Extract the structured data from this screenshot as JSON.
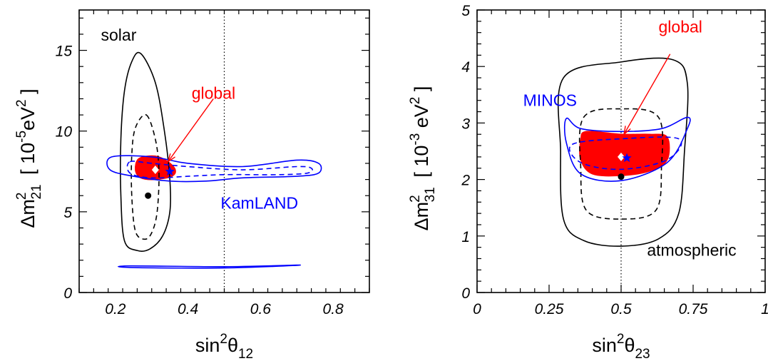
{
  "chart_data": [
    {
      "type": "contour",
      "xlabel": {
        "main": "sin",
        "sup": "2",
        "sym": "θ",
        "sub": "12"
      },
      "ylabel": {
        "main": "Δm",
        "sup": "2",
        "sub": "21",
        "rest": "[ 10",
        "exp": "-5",
        "unit": "eV",
        "unitsup": "2",
        "close": "]"
      },
      "xlim": [
        0.1,
        0.9
      ],
      "ylim": [
        0,
        17.5
      ],
      "xticks": [
        {
          "v": 0.2,
          "label": "0.2"
        },
        {
          "v": 0.4,
          "label": "0.4"
        },
        {
          "v": 0.6,
          "label": "0.6"
        },
        {
          "v": 0.8,
          "label": "0.8"
        }
      ],
      "yticks": [
        {
          "v": 0,
          "label": "0"
        },
        {
          "v": 5,
          "label": "5"
        },
        {
          "v": 10,
          "label": "10"
        },
        {
          "v": 15,
          "label": "15"
        }
      ],
      "vline": {
        "x": 0.5
      },
      "annotations": [
        {
          "text": "solar",
          "x": 0.16,
          "y": 15.6,
          "color": "#000000"
        },
        {
          "text": "global",
          "x": 0.41,
          "y": 12.0,
          "color": "#ff0000"
        },
        {
          "text": "KamLAND",
          "x": 0.49,
          "y": 5.2,
          "color": "#0000ff"
        }
      ],
      "arrow": {
        "from": [
          0.47,
          12.0
        ],
        "to": [
          0.345,
          8.1
        ],
        "color": "#ff0000"
      },
      "regions": [
        {
          "name": "solar",
          "color": "#000000",
          "style": "solid",
          "fill": false,
          "points": [
            [
              0.27,
              14.8
            ],
            [
              0.31,
              13.0
            ],
            [
              0.335,
              10.0
            ],
            [
              0.35,
              7.0
            ],
            [
              0.35,
              5.0
            ],
            [
              0.33,
              3.5
            ],
            [
              0.295,
              2.7
            ],
            [
              0.26,
              2.6
            ],
            [
              0.225,
              3.2
            ],
            [
              0.215,
              6.0
            ],
            [
              0.215,
              9.5
            ],
            [
              0.225,
              12.5
            ],
            [
              0.245,
              14.3
            ]
          ]
        },
        {
          "name": "solar",
          "color": "#000000",
          "style": "dashed",
          "fill": false,
          "points": [
            [
              0.285,
              11.0
            ],
            [
              0.31,
              9.5
            ],
            [
              0.32,
              7.5
            ],
            [
              0.315,
              5.0
            ],
            [
              0.3,
              3.7
            ],
            [
              0.28,
              3.3
            ],
            [
              0.255,
              3.8
            ],
            [
              0.245,
              6.0
            ],
            [
              0.245,
              8.5
            ],
            [
              0.255,
              10.2
            ]
          ]
        },
        {
          "name": "KamLAND",
          "color": "#0000ff",
          "style": "solid",
          "fill": false,
          "points": [
            [
              0.19,
              8.4
            ],
            [
              0.3,
              8.4
            ],
            [
              0.4,
              8.0
            ],
            [
              0.55,
              7.8
            ],
            [
              0.7,
              8.2
            ],
            [
              0.76,
              8.0
            ],
            [
              0.76,
              7.4
            ],
            [
              0.7,
              7.2
            ],
            [
              0.55,
              7.1
            ],
            [
              0.45,
              6.9
            ],
            [
              0.35,
              6.9
            ],
            [
              0.25,
              7.2
            ],
            [
              0.185,
              7.6
            ]
          ]
        },
        {
          "name": "KamLAND",
          "color": "#0000ff",
          "style": "dashed",
          "fill": false,
          "points": [
            [
              0.24,
              8.1
            ],
            [
              0.3,
              8.0
            ],
            [
              0.4,
              7.8
            ],
            [
              0.55,
              7.6
            ],
            [
              0.7,
              7.8
            ],
            [
              0.74,
              7.7
            ],
            [
              0.73,
              7.4
            ],
            [
              0.65,
              7.3
            ],
            [
              0.5,
              7.3
            ],
            [
              0.4,
              7.2
            ],
            [
              0.3,
              7.1
            ],
            [
              0.24,
              7.4
            ]
          ]
        },
        {
          "name": "KamLAND",
          "color": "#0000ff",
          "style": "solid",
          "fill": false,
          "points": [
            [
              0.24,
              1.65
            ],
            [
              0.5,
              1.6
            ],
            [
              0.71,
              1.7
            ],
            [
              0.5,
              1.52
            ],
            [
              0.24,
              1.55
            ]
          ]
        },
        {
          "name": "global",
          "color": "#ff0000",
          "style": "solid",
          "fill": true,
          "points": [
            [
              0.265,
              8.3
            ],
            [
              0.31,
              8.45
            ],
            [
              0.345,
              8.1
            ],
            [
              0.365,
              7.6
            ],
            [
              0.355,
              7.2
            ],
            [
              0.31,
              7.0
            ],
            [
              0.27,
              7.1
            ],
            [
              0.255,
              7.6
            ]
          ]
        }
      ],
      "points": [
        {
          "name": "solar-best-fit",
          "marker": "dot",
          "x": 0.29,
          "y": 6.0,
          "color": "#000000"
        },
        {
          "name": "global-best-fit",
          "marker": "diamond",
          "x": 0.31,
          "y": 7.6,
          "color": "#ffffff"
        },
        {
          "name": "kamland-best-fit",
          "marker": "star",
          "x": 0.35,
          "y": 7.5,
          "color": "#0000ff"
        }
      ]
    },
    {
      "type": "contour",
      "xlabel": {
        "main": "sin",
        "sup": "2",
        "sym": "θ",
        "sub": "23"
      },
      "ylabel": {
        "main": "Δm",
        "sup": "2",
        "sub": "31",
        "rest": "[ 10",
        "exp": "-3",
        "unit": " eV",
        "unitsup": "2",
        "close": "]"
      },
      "xlim": [
        0,
        1
      ],
      "ylim": [
        0,
        5
      ],
      "xticks": [
        {
          "v": 0,
          "label": "0"
        },
        {
          "v": 0.25,
          "label": "0.25"
        },
        {
          "v": 0.5,
          "label": "0.5"
        },
        {
          "v": 0.75,
          "label": "0.75"
        },
        {
          "v": 1,
          "label": "1"
        }
      ],
      "yticks": [
        {
          "v": 0,
          "label": "0"
        },
        {
          "v": 1,
          "label": "1"
        },
        {
          "v": 2,
          "label": "2"
        },
        {
          "v": 3,
          "label": "3"
        },
        {
          "v": 4,
          "label": "4"
        },
        {
          "v": 5,
          "label": "5"
        }
      ],
      "vline": {
        "x": 0.5
      },
      "annotations": [
        {
          "text": "global",
          "x": 0.63,
          "y": 4.6,
          "color": "#ff0000"
        },
        {
          "text": "MINOS",
          "x": 0.16,
          "y": 3.3,
          "color": "#0000ff"
        },
        {
          "text": "atmospheric",
          "x": 0.59,
          "y": 0.65,
          "color": "#000000"
        }
      ],
      "arrow": {
        "from": [
          0.67,
          4.22
        ],
        "to": [
          0.51,
          2.8
        ],
        "color": "#ff0000"
      },
      "regions": [
        {
          "name": "atmospheric",
          "color": "#000000",
          "style": "solid",
          "fill": false,
          "points": [
            [
              0.3,
              3.8
            ],
            [
              0.5,
              4.08
            ],
            [
              0.68,
              4.12
            ],
            [
              0.73,
              3.7
            ],
            [
              0.72,
              2.5
            ],
            [
              0.7,
              1.4
            ],
            [
              0.63,
              0.95
            ],
            [
              0.5,
              0.82
            ],
            [
              0.37,
              0.92
            ],
            [
              0.3,
              1.3
            ],
            [
              0.29,
              2.5
            ]
          ]
        },
        {
          "name": "atmospheric",
          "color": "#000000",
          "style": "dashed",
          "fill": false,
          "points": [
            [
              0.37,
              3.1
            ],
            [
              0.5,
              3.25
            ],
            [
              0.63,
              3.1
            ],
            [
              0.64,
              2.2
            ],
            [
              0.62,
              1.45
            ],
            [
              0.5,
              1.3
            ],
            [
              0.38,
              1.45
            ],
            [
              0.36,
              2.2
            ]
          ]
        },
        {
          "name": "global",
          "color": "#ff0000",
          "style": "solid",
          "fill": true,
          "points": [
            [
              0.38,
              2.85
            ],
            [
              0.5,
              2.8
            ],
            [
              0.6,
              2.8
            ],
            [
              0.66,
              2.75
            ],
            [
              0.66,
              2.35
            ],
            [
              0.6,
              2.15
            ],
            [
              0.5,
              2.07
            ],
            [
              0.4,
              2.1
            ],
            [
              0.36,
              2.35
            ],
            [
              0.36,
              2.7
            ]
          ]
        },
        {
          "name": "MINOS",
          "color": "#0000ff",
          "style": "solid",
          "fill": false,
          "points": [
            [
              0.31,
              3.08
            ],
            [
              0.36,
              2.9
            ],
            [
              0.5,
              2.85
            ],
            [
              0.64,
              2.9
            ],
            [
              0.73,
              3.1
            ],
            [
              0.73,
              2.9
            ],
            [
              0.66,
              2.3
            ],
            [
              0.5,
              1.98
            ],
            [
              0.36,
              2.1
            ],
            [
              0.31,
              2.65
            ]
          ]
        },
        {
          "name": "MINOS",
          "color": "#0000ff",
          "style": "dashed",
          "fill": false,
          "points": [
            [
              0.33,
              2.62
            ],
            [
              0.5,
              2.72
            ],
            [
              0.7,
              2.72
            ],
            [
              0.66,
              2.35
            ],
            [
              0.5,
              2.18
            ],
            [
              0.36,
              2.3
            ]
          ]
        }
      ],
      "points": [
        {
          "name": "atmospheric-best-fit",
          "marker": "dot",
          "x": 0.5,
          "y": 2.05,
          "color": "#000000"
        },
        {
          "name": "global-best-fit",
          "marker": "diamond",
          "x": 0.5,
          "y": 2.4,
          "color": "#ffffff"
        },
        {
          "name": "minos-best-fit",
          "marker": "star",
          "x": 0.52,
          "y": 2.38,
          "color": "#0000ff"
        }
      ]
    }
  ]
}
